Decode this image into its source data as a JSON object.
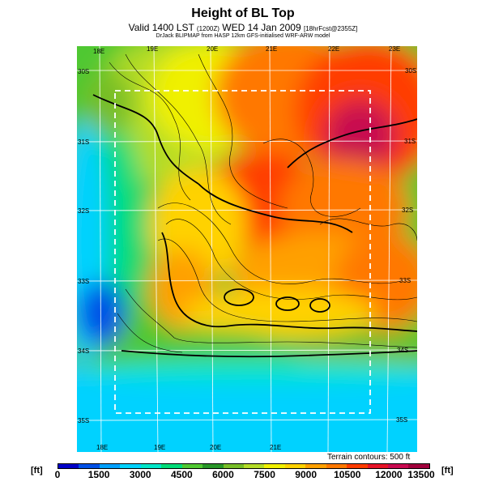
{
  "title": "Height of BL Top",
  "subtitle_main": "Valid 1400 LST",
  "subtitle_small1": "(1200Z)",
  "subtitle_date": "WED 14 Jan 2009",
  "subtitle_small2": "[18hrFcst@2355Z]",
  "credit": "DrJack BLIPMAP from HASP 12km GFS-initialised WRF-ARW model",
  "terrain_note": "Terrain contours: 500 ft",
  "unit_label": "[ft]",
  "colorbar": {
    "colors": [
      "#0000c8",
      "#0050e6",
      "#00a0ff",
      "#00d2ff",
      "#00e6c8",
      "#00dc78",
      "#50c832",
      "#289628",
      "#78be28",
      "#b4dc28",
      "#f0f000",
      "#ffd200",
      "#ffa000",
      "#ff7800",
      "#ff3c00",
      "#e61428",
      "#c80a50",
      "#a0003c"
    ],
    "tick_labels": [
      "0",
      "1500",
      "3000",
      "4500",
      "6000",
      "7500",
      "9000",
      "10500",
      "12000",
      "13500"
    ]
  },
  "map": {
    "lon_top": [
      "18E",
      "19E",
      "20E",
      "21E",
      "22E",
      "23E"
    ],
    "lon_bottom": [
      "18E",
      "19E",
      "20E",
      "21E"
    ],
    "lat_left": [
      "30S",
      "31S",
      "32S",
      "33S",
      "34S",
      "35S"
    ],
    "lat_right": [
      "30S",
      "31S",
      "32S",
      "33S",
      "34S",
      "35S"
    ]
  }
}
